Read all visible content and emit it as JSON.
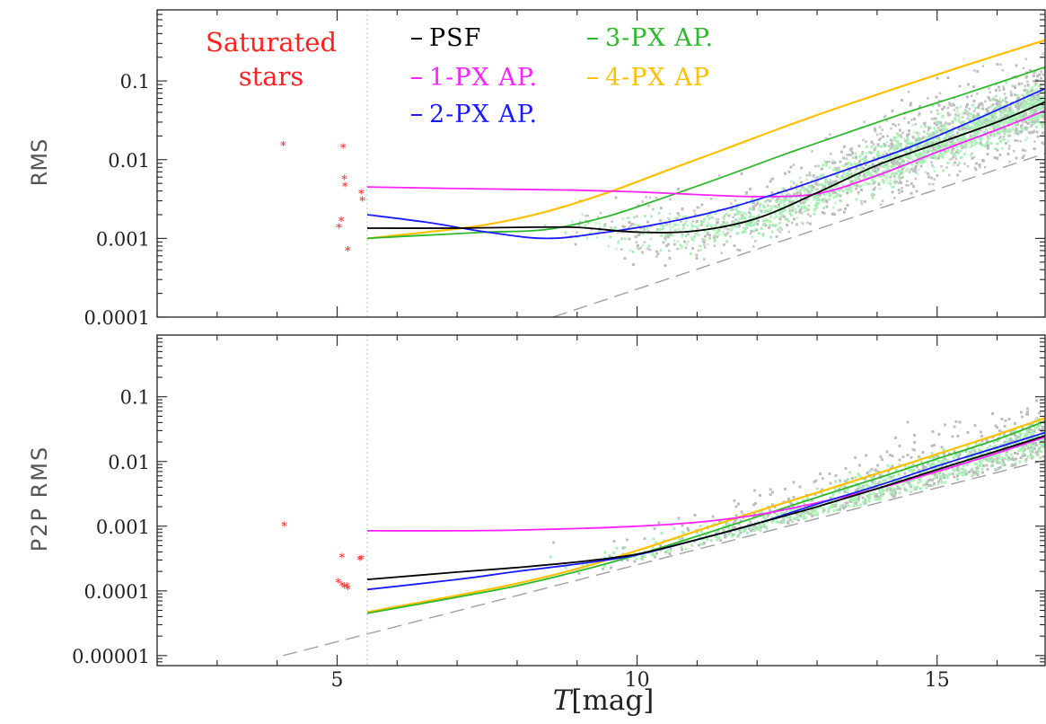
{
  "chart_data": {
    "type": "scatter",
    "shared_x": {
      "label": "T[mag]",
      "label_italic_part": "T",
      "label_rest": "[mag]",
      "xlim": [
        2,
        16.8
      ],
      "ticks": [
        5,
        10,
        15
      ],
      "tick_labels": [
        "5",
        "10",
        "15"
      ]
    },
    "saturation_limit": 5.5,
    "annotation": {
      "line1": "Saturated",
      "line2": "stars",
      "color": "#ff2020"
    },
    "legend": {
      "items": [
        {
          "key": "psf",
          "label": "PSF",
          "color": "#000000"
        },
        {
          "key": "ap1",
          "label": "1-PX AP.",
          "color": "#ff20ff"
        },
        {
          "key": "ap2",
          "label": "2-PX AP.",
          "color": "#1a1aff"
        },
        {
          "key": "ap3",
          "label": "3-PX AP.",
          "color": "#2eb82e"
        },
        {
          "key": "ap4",
          "label": "4-PX AP",
          "color": "#ffc000"
        }
      ]
    },
    "panels": [
      {
        "id": "rms",
        "ylabel": "RMS",
        "scale": "log",
        "ylim": [
          0.0001,
          0.8
        ],
        "ticks": [
          0.0001,
          0.001,
          0.01,
          0.1
        ],
        "tick_labels": [
          "0.0001",
          "0.001",
          "0.01",
          "0.1"
        ],
        "saturated_stars": [
          [
            4.1,
            0.0155
          ],
          [
            5.1,
            0.0145
          ],
          [
            5.12,
            0.0058
          ],
          [
            5.13,
            0.0047
          ],
          [
            5.4,
            0.0038
          ],
          [
            5.42,
            0.0031
          ],
          [
            5.07,
            0.0017
          ],
          [
            5.03,
            0.0014
          ],
          [
            5.18,
            0.00072
          ]
        ],
        "series": [
          {
            "key": "psf",
            "x": [
              5.5,
              7,
              8,
              9,
              10,
              11,
              12,
              13,
              14,
              15,
              16,
              16.8
            ],
            "y": [
              0.00135,
              0.00135,
              0.00138,
              0.00138,
              0.0012,
              0.00125,
              0.0018,
              0.0038,
              0.0085,
              0.016,
              0.03,
              0.054
            ]
          },
          {
            "key": "ap1",
            "x": [
              5.5,
              7,
              8,
              9,
              10,
              11,
              12,
              13,
              14,
              15,
              16,
              16.8
            ],
            "y": [
              0.0045,
              0.0043,
              0.0042,
              0.0041,
              0.0039,
              0.0036,
              0.0034,
              0.0037,
              0.0063,
              0.0125,
              0.024,
              0.042
            ]
          },
          {
            "key": "ap2",
            "x": [
              5.5,
              6.5,
              7.5,
              8.5,
              9.5,
              10.5,
              11.5,
              12.5,
              13.5,
              14.5,
              15.5,
              16.8
            ],
            "y": [
              0.002,
              0.0016,
              0.0012,
              0.001,
              0.0012,
              0.0016,
              0.0024,
              0.0041,
              0.0075,
              0.014,
              0.029,
              0.08
            ]
          },
          {
            "key": "ap3",
            "x": [
              5.5,
              6.5,
              7.5,
              8.5,
              9.5,
              10.5,
              11.5,
              12.5,
              13.5,
              14.5,
              15.5,
              16.8
            ],
            "y": [
              0.001,
              0.0011,
              0.0012,
              0.0013,
              0.0019,
              0.0034,
              0.0063,
              0.012,
              0.022,
              0.04,
              0.07,
              0.15
            ]
          },
          {
            "key": "ap4",
            "x": [
              5.5,
              6.5,
              7.5,
              8.5,
              9.5,
              10.5,
              11.5,
              12.5,
              13.5,
              14.5,
              15.5,
              16.8
            ],
            "y": [
              0.001,
              0.0012,
              0.0015,
              0.0022,
              0.0038,
              0.0073,
              0.014,
              0.027,
              0.05,
              0.09,
              0.16,
              0.33
            ]
          }
        ],
        "reference": {
          "key": "noise-floor",
          "x": [
            8.6,
            16.8
          ],
          "y": [
            0.0001,
            0.012
          ]
        }
      },
      {
        "id": "p2p",
        "ylabel": "P2P RMS",
        "scale": "log",
        "ylim": [
          7e-06,
          0.9
        ],
        "ticks": [
          1e-05,
          0.0001,
          0.001,
          0.01,
          0.1
        ],
        "tick_labels": [
          "0.00001",
          "0.0001",
          "0.001",
          "0.01",
          "0.1"
        ],
        "saturated_stars": [
          [
            4.12,
            0.00105
          ],
          [
            5.08,
            0.00034
          ],
          [
            5.38,
            0.00031
          ],
          [
            5.4,
            0.00032
          ],
          [
            5.02,
            0.00014
          ],
          [
            5.08,
            0.000125
          ],
          [
            5.12,
            0.000115
          ],
          [
            5.16,
            0.00012
          ],
          [
            5.18,
            0.00011
          ]
        ],
        "series": [
          {
            "key": "psf",
            "x": [
              5.5,
              7,
              8,
              9,
              10,
              11,
              12,
              13,
              14,
              15,
              16,
              16.8
            ],
            "y": [
              0.00015,
              0.000195,
              0.00023,
              0.00028,
              0.00037,
              0.00062,
              0.0011,
              0.002,
              0.0038,
              0.0075,
              0.0145,
              0.025
            ]
          },
          {
            "key": "ap1",
            "x": [
              5.5,
              7,
              8,
              9,
              10,
              11,
              12,
              13,
              14,
              15,
              16,
              16.8
            ],
            "y": [
              0.00085,
              0.00085,
              0.00087,
              0.00092,
              0.001,
              0.00115,
              0.0015,
              0.0023,
              0.0038,
              0.007,
              0.0135,
              0.024
            ]
          },
          {
            "key": "ap2",
            "x": [
              5.5,
              7,
              8,
              9,
              10,
              11,
              12,
              13,
              14,
              15,
              16,
              16.8
            ],
            "y": [
              0.000105,
              0.00015,
              0.0002,
              0.00026,
              0.00036,
              0.00062,
              0.0011,
              0.0022,
              0.0042,
              0.0085,
              0.0165,
              0.028
            ]
          },
          {
            "key": "ap3",
            "x": [
              5.5,
              7,
              8,
              9,
              10,
              11,
              12,
              13,
              14,
              15,
              16,
              16.8
            ],
            "y": [
              4.5e-05,
              8e-05,
              0.00012,
              0.0002,
              0.00036,
              0.0007,
              0.0014,
              0.0028,
              0.0055,
              0.011,
              0.022,
              0.042
            ]
          },
          {
            "key": "ap4",
            "x": [
              5.5,
              7,
              8,
              9,
              10,
              11,
              12,
              13,
              14,
              15,
              16,
              16.8
            ],
            "y": [
              4.7e-05,
              8.5e-05,
              0.00013,
              0.00022,
              0.00042,
              0.00085,
              0.0017,
              0.0033,
              0.0065,
              0.013,
              0.026,
              0.047
            ]
          }
        ],
        "reference": {
          "key": "noise-floor",
          "x": [
            4.1,
            16.8
          ],
          "y": [
            1e-05,
            0.0105
          ]
        }
      }
    ]
  }
}
